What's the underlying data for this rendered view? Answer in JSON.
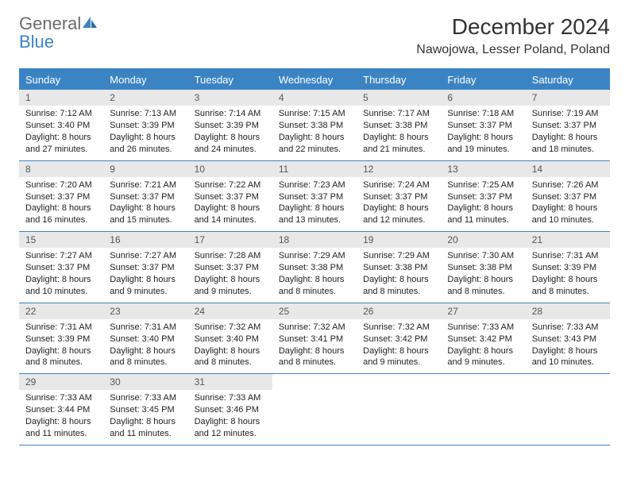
{
  "brand": {
    "word1": "General",
    "word2": "Blue"
  },
  "title": "December 2024",
  "location": "Nawojowa, Lesser Poland, Poland",
  "colors": {
    "accent": "#3b84c4",
    "dow_bg": "#3b84c4",
    "dow_text": "#ffffff",
    "daynum_bg": "#e8e8e8",
    "daynum_text": "#555555",
    "text": "#222222",
    "background": "#ffffff"
  },
  "typography": {
    "title_fontsize": 28,
    "location_fontsize": 16,
    "dow_fontsize": 13,
    "cell_fontsize": 11
  },
  "days_of_week": [
    "Sunday",
    "Monday",
    "Tuesday",
    "Wednesday",
    "Thursday",
    "Friday",
    "Saturday"
  ],
  "weeks": [
    [
      {
        "n": "1",
        "sunrise": "Sunrise: 7:12 AM",
        "sunset": "Sunset: 3:40 PM",
        "daylight": "Daylight: 8 hours and 27 minutes."
      },
      {
        "n": "2",
        "sunrise": "Sunrise: 7:13 AM",
        "sunset": "Sunset: 3:39 PM",
        "daylight": "Daylight: 8 hours and 26 minutes."
      },
      {
        "n": "3",
        "sunrise": "Sunrise: 7:14 AM",
        "sunset": "Sunset: 3:39 PM",
        "daylight": "Daylight: 8 hours and 24 minutes."
      },
      {
        "n": "4",
        "sunrise": "Sunrise: 7:15 AM",
        "sunset": "Sunset: 3:38 PM",
        "daylight": "Daylight: 8 hours and 22 minutes."
      },
      {
        "n": "5",
        "sunrise": "Sunrise: 7:17 AM",
        "sunset": "Sunset: 3:38 PM",
        "daylight": "Daylight: 8 hours and 21 minutes."
      },
      {
        "n": "6",
        "sunrise": "Sunrise: 7:18 AM",
        "sunset": "Sunset: 3:37 PM",
        "daylight": "Daylight: 8 hours and 19 minutes."
      },
      {
        "n": "7",
        "sunrise": "Sunrise: 7:19 AM",
        "sunset": "Sunset: 3:37 PM",
        "daylight": "Daylight: 8 hours and 18 minutes."
      }
    ],
    [
      {
        "n": "8",
        "sunrise": "Sunrise: 7:20 AM",
        "sunset": "Sunset: 3:37 PM",
        "daylight": "Daylight: 8 hours and 16 minutes."
      },
      {
        "n": "9",
        "sunrise": "Sunrise: 7:21 AM",
        "sunset": "Sunset: 3:37 PM",
        "daylight": "Daylight: 8 hours and 15 minutes."
      },
      {
        "n": "10",
        "sunrise": "Sunrise: 7:22 AM",
        "sunset": "Sunset: 3:37 PM",
        "daylight": "Daylight: 8 hours and 14 minutes."
      },
      {
        "n": "11",
        "sunrise": "Sunrise: 7:23 AM",
        "sunset": "Sunset: 3:37 PM",
        "daylight": "Daylight: 8 hours and 13 minutes."
      },
      {
        "n": "12",
        "sunrise": "Sunrise: 7:24 AM",
        "sunset": "Sunset: 3:37 PM",
        "daylight": "Daylight: 8 hours and 12 minutes."
      },
      {
        "n": "13",
        "sunrise": "Sunrise: 7:25 AM",
        "sunset": "Sunset: 3:37 PM",
        "daylight": "Daylight: 8 hours and 11 minutes."
      },
      {
        "n": "14",
        "sunrise": "Sunrise: 7:26 AM",
        "sunset": "Sunset: 3:37 PM",
        "daylight": "Daylight: 8 hours and 10 minutes."
      }
    ],
    [
      {
        "n": "15",
        "sunrise": "Sunrise: 7:27 AM",
        "sunset": "Sunset: 3:37 PM",
        "daylight": "Daylight: 8 hours and 10 minutes."
      },
      {
        "n": "16",
        "sunrise": "Sunrise: 7:27 AM",
        "sunset": "Sunset: 3:37 PM",
        "daylight": "Daylight: 8 hours and 9 minutes."
      },
      {
        "n": "17",
        "sunrise": "Sunrise: 7:28 AM",
        "sunset": "Sunset: 3:37 PM",
        "daylight": "Daylight: 8 hours and 9 minutes."
      },
      {
        "n": "18",
        "sunrise": "Sunrise: 7:29 AM",
        "sunset": "Sunset: 3:38 PM",
        "daylight": "Daylight: 8 hours and 8 minutes."
      },
      {
        "n": "19",
        "sunrise": "Sunrise: 7:29 AM",
        "sunset": "Sunset: 3:38 PM",
        "daylight": "Daylight: 8 hours and 8 minutes."
      },
      {
        "n": "20",
        "sunrise": "Sunrise: 7:30 AM",
        "sunset": "Sunset: 3:38 PM",
        "daylight": "Daylight: 8 hours and 8 minutes."
      },
      {
        "n": "21",
        "sunrise": "Sunrise: 7:31 AM",
        "sunset": "Sunset: 3:39 PM",
        "daylight": "Daylight: 8 hours and 8 minutes."
      }
    ],
    [
      {
        "n": "22",
        "sunrise": "Sunrise: 7:31 AM",
        "sunset": "Sunset: 3:39 PM",
        "daylight": "Daylight: 8 hours and 8 minutes."
      },
      {
        "n": "23",
        "sunrise": "Sunrise: 7:31 AM",
        "sunset": "Sunset: 3:40 PM",
        "daylight": "Daylight: 8 hours and 8 minutes."
      },
      {
        "n": "24",
        "sunrise": "Sunrise: 7:32 AM",
        "sunset": "Sunset: 3:40 PM",
        "daylight": "Daylight: 8 hours and 8 minutes."
      },
      {
        "n": "25",
        "sunrise": "Sunrise: 7:32 AM",
        "sunset": "Sunset: 3:41 PM",
        "daylight": "Daylight: 8 hours and 8 minutes."
      },
      {
        "n": "26",
        "sunrise": "Sunrise: 7:32 AM",
        "sunset": "Sunset: 3:42 PM",
        "daylight": "Daylight: 8 hours and 9 minutes."
      },
      {
        "n": "27",
        "sunrise": "Sunrise: 7:33 AM",
        "sunset": "Sunset: 3:42 PM",
        "daylight": "Daylight: 8 hours and 9 minutes."
      },
      {
        "n": "28",
        "sunrise": "Sunrise: 7:33 AM",
        "sunset": "Sunset: 3:43 PM",
        "daylight": "Daylight: 8 hours and 10 minutes."
      }
    ],
    [
      {
        "n": "29",
        "sunrise": "Sunrise: 7:33 AM",
        "sunset": "Sunset: 3:44 PM",
        "daylight": "Daylight: 8 hours and 11 minutes."
      },
      {
        "n": "30",
        "sunrise": "Sunrise: 7:33 AM",
        "sunset": "Sunset: 3:45 PM",
        "daylight": "Daylight: 8 hours and 11 minutes."
      },
      {
        "n": "31",
        "sunrise": "Sunrise: 7:33 AM",
        "sunset": "Sunset: 3:46 PM",
        "daylight": "Daylight: 8 hours and 12 minutes."
      },
      {
        "empty": true
      },
      {
        "empty": true
      },
      {
        "empty": true
      },
      {
        "empty": true
      }
    ]
  ]
}
